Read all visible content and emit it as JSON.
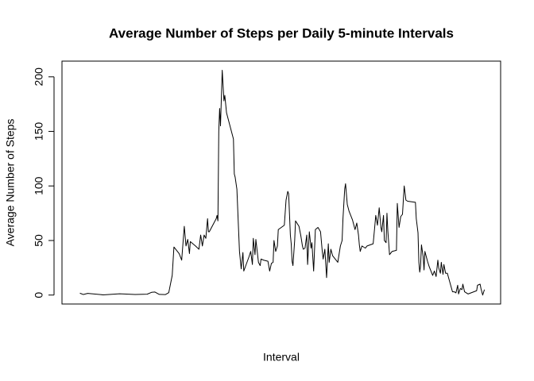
{
  "chart_data": {
    "type": "line",
    "title": "Average Number of Steps per Daily 5-minute Intervals",
    "x_label": "Interval",
    "y_label": "Average Number of Steps",
    "color": "#000000",
    "x": [
      10,
      30,
      55,
      145,
      240,
      330,
      400,
      425,
      445,
      470,
      505,
      525,
      545,
      555,
      585,
      600,
      615,
      625,
      635,
      645,
      650,
      680,
      700,
      710,
      720,
      730,
      740,
      750,
      755,
      760,
      800,
      805,
      810,
      815,
      820,
      825,
      835,
      845,
      850,
      860,
      900,
      905,
      910,
      920,
      935,
      945,
      955,
      960,
      990,
      1000,
      1010,
      1015,
      1025,
      1030,
      1045,
      1055,
      1060,
      1075,
      1100,
      1110,
      1120,
      1130,
      1135,
      1145,
      1155,
      1160,
      1195,
      1205,
      1215,
      1220,
      1230,
      1235,
      1240,
      1245,
      1255,
      1260,
      1280,
      1290,
      1300,
      1305,
      1315,
      1325,
      1330,
      1340,
      1350,
      1355,
      1365,
      1375,
      1390,
      1405,
      1415,
      1420,
      1430,
      1440,
      1450,
      1455,
      1465,
      1475,
      1505,
      1520,
      1530,
      1535,
      1545,
      1550,
      1560,
      1570,
      1590,
      1600,
      1605,
      1615,
      1625,
      1630,
      1635,
      1645,
      1665,
      1675,
      1710,
      1720,
      1725,
      1735,
      1745,
      1755,
      1760,
      1770,
      1775,
      1785,
      1790,
      1795,
      1805,
      1820,
      1845,
      1850,
      1860,
      1870,
      1880,
      1890,
      1900,
      1910,
      1955,
      1960,
      1970,
      1975,
      1980,
      1985,
      1990,
      2000,
      2005,
      2010,
      2025,
      2035,
      2055,
      2065,
      2075,
      2085,
      2090,
      2100,
      2105,
      2115,
      2120,
      2130,
      2140,
      2170,
      2180,
      2190,
      2200,
      2205,
      2215,
      2225,
      2230,
      2240,
      2250,
      2260,
      2310,
      2315,
      2330,
      2335,
      2345,
      2355
    ],
    "values": [
      1.7,
      0.5,
      1.5,
      0.2,
      1.2,
      0.5,
      0.8,
      2.5,
      2.8,
      0.6,
      0.4,
      2.2,
      18,
      44,
      38,
      32,
      63,
      45,
      51,
      38,
      49,
      45,
      42,
      55,
      45,
      55,
      52,
      70,
      58,
      58,
      70,
      73,
      68,
      150,
      171,
      155,
      206,
      178,
      183,
      167,
      143,
      111,
      108,
      97,
      40,
      24,
      39,
      22,
      35,
      40,
      28,
      52,
      37,
      51,
      30,
      27,
      33,
      32,
      31,
      22,
      29,
      30,
      50,
      40,
      45,
      60,
      64,
      87,
      95,
      93,
      55,
      47,
      31,
      27,
      50,
      68,
      63,
      55,
      45,
      42,
      43,
      55,
      28,
      58,
      43,
      48,
      22,
      60,
      62,
      58,
      40,
      33,
      42,
      16,
      47,
      30,
      42,
      36,
      30,
      45,
      50,
      70,
      97,
      102,
      83,
      77,
      69,
      63,
      60,
      66,
      55,
      46,
      40,
      45,
      43,
      45,
      47,
      64,
      73,
      64,
      80,
      62,
      58,
      73,
      50,
      48,
      75,
      59,
      37,
      40,
      41,
      84,
      62,
      72,
      74,
      100,
      87,
      86,
      85,
      70,
      57,
      30,
      21,
      27,
      46,
      35,
      23,
      40,
      31,
      26,
      18,
      22,
      17,
      32,
      25,
      20,
      30,
      19,
      28,
      20,
      20,
      3,
      3,
      2,
      9,
      1,
      6,
      5,
      10,
      3,
      2,
      1,
      4,
      9,
      10,
      6,
      0,
      5
    ],
    "xlim": [
      -94,
      2449
    ],
    "ylim": [
      -8.2,
      214.4
    ],
    "yticks": [
      0,
      50,
      100,
      150,
      200
    ]
  }
}
